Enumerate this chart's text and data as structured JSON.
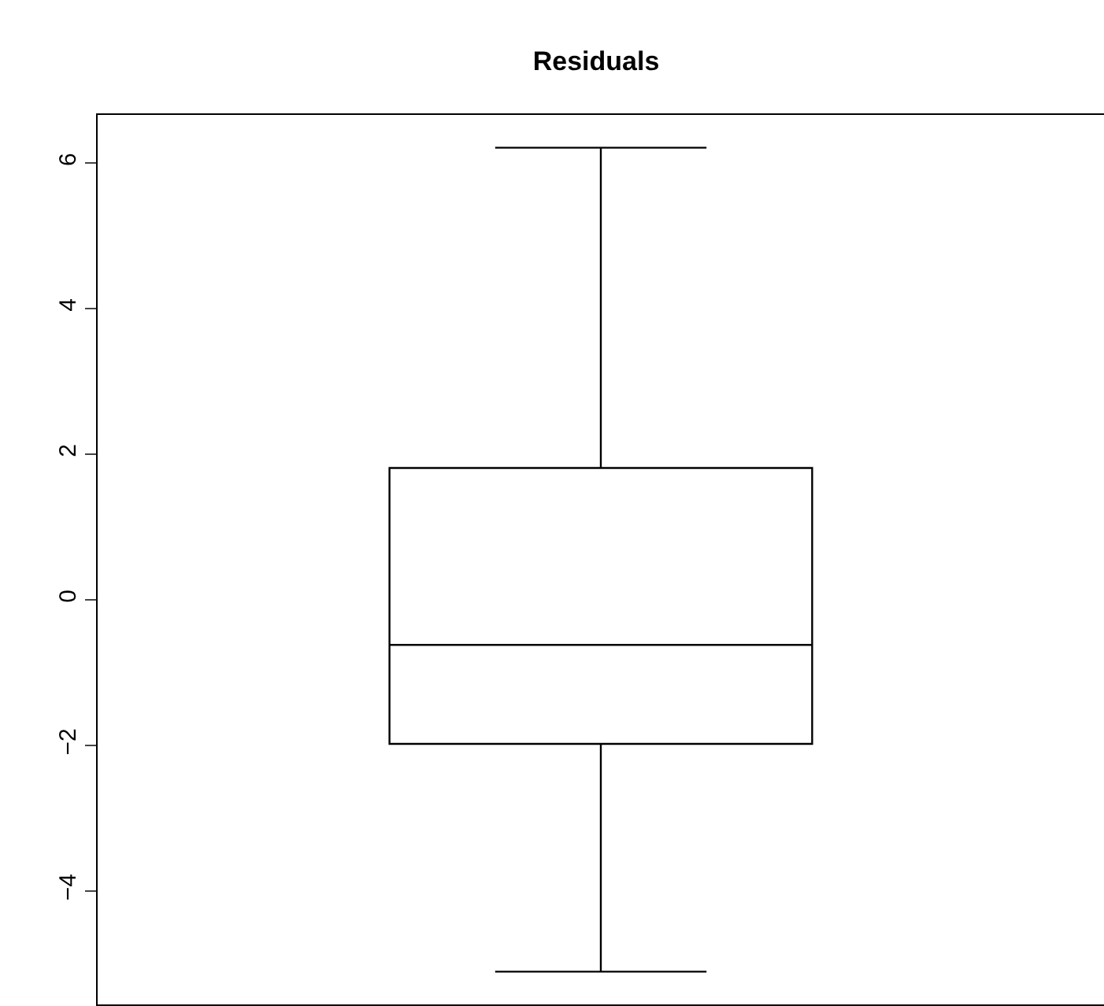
{
  "chart_data": {
    "type": "box",
    "title": "Residuals",
    "categories": [
      null
    ],
    "boxes": [
      {
        "low": -5.11,
        "q1": -1.98,
        "median": -0.62,
        "q3": 1.81,
        "high": 6.21
      }
    ],
    "color": "#000000",
    "ylim": [
      -5.56,
      6.66
    ],
    "yticks": [
      -4,
      -2,
      0,
      2,
      4,
      6
    ],
    "legend": false,
    "tick_labels": "y"
  }
}
